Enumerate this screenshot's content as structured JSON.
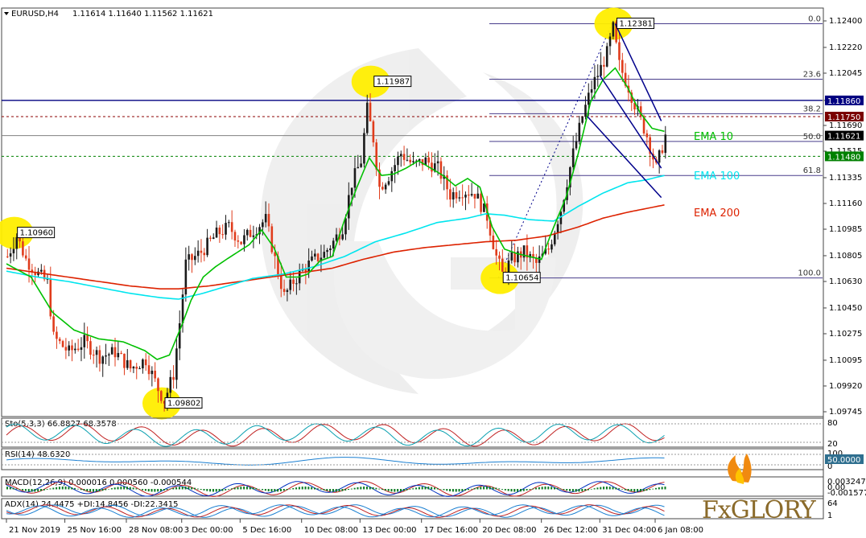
{
  "header": {
    "symbol": "EURUSD,H4",
    "ohlc": "1.11614 1.11640 1.11562 1.11621"
  },
  "chart_data": {
    "type": "candlestick",
    "symbol": "EURUSD",
    "timeframe": "H4",
    "ohlc": {
      "open": 1.11614,
      "high": 1.1164,
      "low": 1.11562,
      "close": 1.11621
    },
    "price_axis_ticks": [
      "1.12400",
      "1.12220",
      "1.12045",
      "1.11860",
      "1.11690",
      "1.11515",
      "1.11335",
      "1.11160",
      "1.10985",
      "1.10805",
      "1.10630",
      "1.10450",
      "1.10275",
      "1.10095",
      "1.09920",
      "1.09745"
    ],
    "ylim": [
      1.0965,
      1.1254
    ],
    "time_axis_ticks": [
      "21 Nov 2019",
      "25 Nov 16:00",
      "28 Nov 08:00",
      "3 Dec 00:00",
      "5 Dec 16:00",
      "10 Dec 08:00",
      "13 Dec 00:00",
      "17 Dec 16:00",
      "20 Dec 08:00",
      "26 Dec 12:00",
      "31 Dec 04:00",
      "6 Jan 08:00"
    ],
    "price_labels": [
      {
        "value": 1.1186,
        "text": "1.11860",
        "color": "#000080"
      },
      {
        "value": 1.1175,
        "text": "1.11750",
        "color": "#7a0000"
      },
      {
        "value": 1.11621,
        "text": "1.11621",
        "color": "#000000"
      },
      {
        "value": 1.1148,
        "text": "1.11480",
        "color": "#008000"
      }
    ],
    "horizontal_lines": [
      {
        "value": 1.1186,
        "style": "solid",
        "color": "#000080"
      },
      {
        "value": 1.1175,
        "style": "dash",
        "color": "#8b0000"
      },
      {
        "value": 1.11621,
        "style": "solid",
        "color": "#808080"
      },
      {
        "value": 1.1148,
        "style": "dash",
        "color": "#008000"
      }
    ],
    "fibonacci": [
      {
        "level": "0.0",
        "value": 1.12381
      },
      {
        "level": "23.6",
        "value": 1.12004
      },
      {
        "level": "38.2",
        "value": 1.1177
      },
      {
        "level": "50.0",
        "value": 1.11581
      },
      {
        "level": "61.8",
        "value": 1.1135
      },
      {
        "level": "100.0",
        "value": 1.10654
      }
    ],
    "swing_labels": [
      {
        "text": "1.10960",
        "value": 1.1096,
        "bar": 2
      },
      {
        "text": "1.09802",
        "value": 1.09802,
        "bar": 50
      },
      {
        "text": "1.11987",
        "value": 1.11987,
        "bar": 118
      },
      {
        "text": "1.10654",
        "value": 1.10654,
        "bar": 160
      },
      {
        "text": "1.12381",
        "value": 1.12381,
        "bar": 197
      }
    ],
    "series_labels": [
      {
        "name": "EMA 10",
        "color": "#00c000"
      },
      {
        "name": "EMA 100",
        "color": "#00e5ee"
      },
      {
        "name": "EMA 200",
        "color": "#dd2200"
      }
    ],
    "ema10": [
      [
        0,
        1.1075
      ],
      [
        8,
        1.1066
      ],
      [
        15,
        1.1042
      ],
      [
        22,
        1.103
      ],
      [
        30,
        1.1024
      ],
      [
        38,
        1.1022
      ],
      [
        45,
        1.1016
      ],
      [
        49,
        1.101
      ],
      [
        53,
        1.1013
      ],
      [
        57,
        1.1033
      ],
      [
        60,
        1.105
      ],
      [
        64,
        1.1066
      ],
      [
        68,
        1.1073
      ],
      [
        73,
        1.108
      ],
      [
        79,
        1.1088
      ],
      [
        83,
        1.1098
      ],
      [
        87,
        1.1086
      ],
      [
        91,
        1.1066
      ],
      [
        95,
        1.1066
      ],
      [
        98,
        1.1068
      ],
      [
        102,
        1.1077
      ],
      [
        106,
        1.108
      ],
      [
        110,
        1.1105
      ],
      [
        114,
        1.1127
      ],
      [
        118,
        1.1147
      ],
      [
        122,
        1.1135
      ],
      [
        126,
        1.1136
      ],
      [
        130,
        1.114
      ],
      [
        134,
        1.1145
      ],
      [
        138,
        1.114
      ],
      [
        142,
        1.1135
      ],
      [
        146,
        1.1128
      ],
      [
        150,
        1.1133
      ],
      [
        154,
        1.1127
      ],
      [
        158,
        1.11
      ],
      [
        162,
        1.1085
      ],
      [
        166,
        1.1082
      ],
      [
        170,
        1.108
      ],
      [
        174,
        1.1078
      ],
      [
        178,
        1.11
      ],
      [
        182,
        1.112
      ],
      [
        186,
        1.115
      ],
      [
        190,
        1.1185
      ],
      [
        194,
        1.12
      ],
      [
        198,
        1.1208
      ],
      [
        202,
        1.1195
      ],
      [
        206,
        1.1178
      ],
      [
        210,
        1.1167
      ],
      [
        214,
        1.1165
      ]
    ],
    "ema100": [
      [
        0,
        1.107
      ],
      [
        10,
        1.1066
      ],
      [
        20,
        1.1063
      ],
      [
        30,
        1.1059
      ],
      [
        40,
        1.1055
      ],
      [
        50,
        1.1052
      ],
      [
        56,
        1.1051
      ],
      [
        64,
        1.1055
      ],
      [
        72,
        1.106
      ],
      [
        80,
        1.1065
      ],
      [
        90,
        1.1068
      ],
      [
        100,
        1.1073
      ],
      [
        110,
        1.108
      ],
      [
        120,
        1.109
      ],
      [
        130,
        1.1096
      ],
      [
        140,
        1.1103
      ],
      [
        150,
        1.1106
      ],
      [
        156,
        1.1109
      ],
      [
        162,
        1.1108
      ],
      [
        170,
        1.1105
      ],
      [
        178,
        1.1104
      ],
      [
        186,
        1.1114
      ],
      [
        194,
        1.1123
      ],
      [
        202,
        1.113
      ],
      [
        208,
        1.1132
      ],
      [
        214,
        1.1135
      ]
    ],
    "ema200": [
      [
        0,
        1.1072
      ],
      [
        10,
        1.1069
      ],
      [
        20,
        1.1066
      ],
      [
        30,
        1.1063
      ],
      [
        40,
        1.106
      ],
      [
        50,
        1.1058
      ],
      [
        56,
        1.1058
      ],
      [
        66,
        1.106
      ],
      [
        76,
        1.1063
      ],
      [
        86,
        1.1066
      ],
      [
        96,
        1.1069
      ],
      [
        106,
        1.1072
      ],
      [
        116,
        1.1078
      ],
      [
        126,
        1.1083
      ],
      [
        136,
        1.1086
      ],
      [
        146,
        1.1088
      ],
      [
        156,
        1.109
      ],
      [
        166,
        1.1091
      ],
      [
        176,
        1.1094
      ],
      [
        186,
        1.11
      ],
      [
        194,
        1.1106
      ],
      [
        202,
        1.111
      ],
      [
        214,
        1.1115
      ]
    ],
    "price_path": [
      [
        0,
        1.108
      ],
      [
        3,
        1.1094
      ],
      [
        6,
        1.1078
      ],
      [
        10,
        1.1068
      ],
      [
        13,
        1.1062
      ],
      [
        15,
        1.1025
      ],
      [
        20,
        1.1015
      ],
      [
        25,
        1.1022
      ],
      [
        30,
        1.1012
      ],
      [
        35,
        1.1015
      ],
      [
        40,
        1.1004
      ],
      [
        45,
        1.101
      ],
      [
        49,
        1.099
      ],
      [
        51,
        1.0982
      ],
      [
        54,
        1.1
      ],
      [
        56,
        1.1035
      ],
      [
        58,
        1.1075
      ],
      [
        63,
        1.1083
      ],
      [
        68,
        1.1095
      ],
      [
        72,
        1.11
      ],
      [
        76,
        1.109
      ],
      [
        80,
        1.1098
      ],
      [
        84,
        1.1105
      ],
      [
        87,
        1.1078
      ],
      [
        90,
        1.1053
      ],
      [
        93,
        1.1063
      ],
      [
        97,
        1.1073
      ],
      [
        100,
        1.1078
      ],
      [
        103,
        1.1082
      ],
      [
        106,
        1.109
      ],
      [
        109,
        1.11
      ],
      [
        112,
        1.113
      ],
      [
        115,
        1.1145
      ],
      [
        117,
        1.118
      ],
      [
        119,
        1.116
      ],
      [
        121,
        1.1127
      ],
      [
        124,
        1.1135
      ],
      [
        128,
        1.115
      ],
      [
        132,
        1.1142
      ],
      [
        136,
        1.1145
      ],
      [
        140,
        1.114
      ],
      [
        144,
        1.1122
      ],
      [
        148,
        1.1125
      ],
      [
        152,
        1.1123
      ],
      [
        156,
        1.1107
      ],
      [
        159,
        1.108
      ],
      [
        161,
        1.1068
      ],
      [
        164,
        1.1078
      ],
      [
        168,
        1.1083
      ],
      [
        172,
        1.1075
      ],
      [
        176,
        1.1085
      ],
      [
        180,
        1.1112
      ],
      [
        184,
        1.115
      ],
      [
        187,
        1.1175
      ],
      [
        190,
        1.1195
      ],
      [
        193,
        1.1208
      ],
      [
        195,
        1.1218
      ],
      [
        197,
        1.1235
      ],
      [
        199,
        1.121
      ],
      [
        202,
        1.1195
      ],
      [
        205,
        1.1178
      ],
      [
        208,
        1.1162
      ],
      [
        211,
        1.114
      ],
      [
        214,
        1.1162
      ]
    ],
    "stochastic": {
      "label": "Sto(5,3,3) 66.8827 68.3578",
      "k": 66.8827,
      "d": 68.3578,
      "levels": [
        "80",
        "20"
      ],
      "scale_ticks": [
        "80",
        "20"
      ]
    },
    "rsi": {
      "label": "RSI(14) 48.6320",
      "value": 48.632,
      "marker": "50.0000",
      "scale_ticks": [
        "100",
        "0"
      ]
    },
    "macd": {
      "label": "MACD(12,26,9) 0.000016 0.000560 -0.000544",
      "values": [
        1.6e-05,
        0.00056,
        -0.000544
      ],
      "scale_ticks": [
        "0.003247",
        "0.00",
        "-0.001577"
      ]
    },
    "adx": {
      "label": "ADX(14) 24.4475 +DI:14.8456 -DI:22.3415",
      "adx": 24.4475,
      "plus_di": 14.8456,
      "minus_di": 22.3415,
      "scale_ticks": [
        "64",
        "1"
      ]
    }
  },
  "watermark": {
    "brand": "FxGLORY"
  },
  "colors": {
    "bull": "#1a1a1a",
    "bear": "#e03c1c",
    "fib": "#483d8b",
    "channel": "#00008b",
    "highlight": "#ffee00"
  }
}
